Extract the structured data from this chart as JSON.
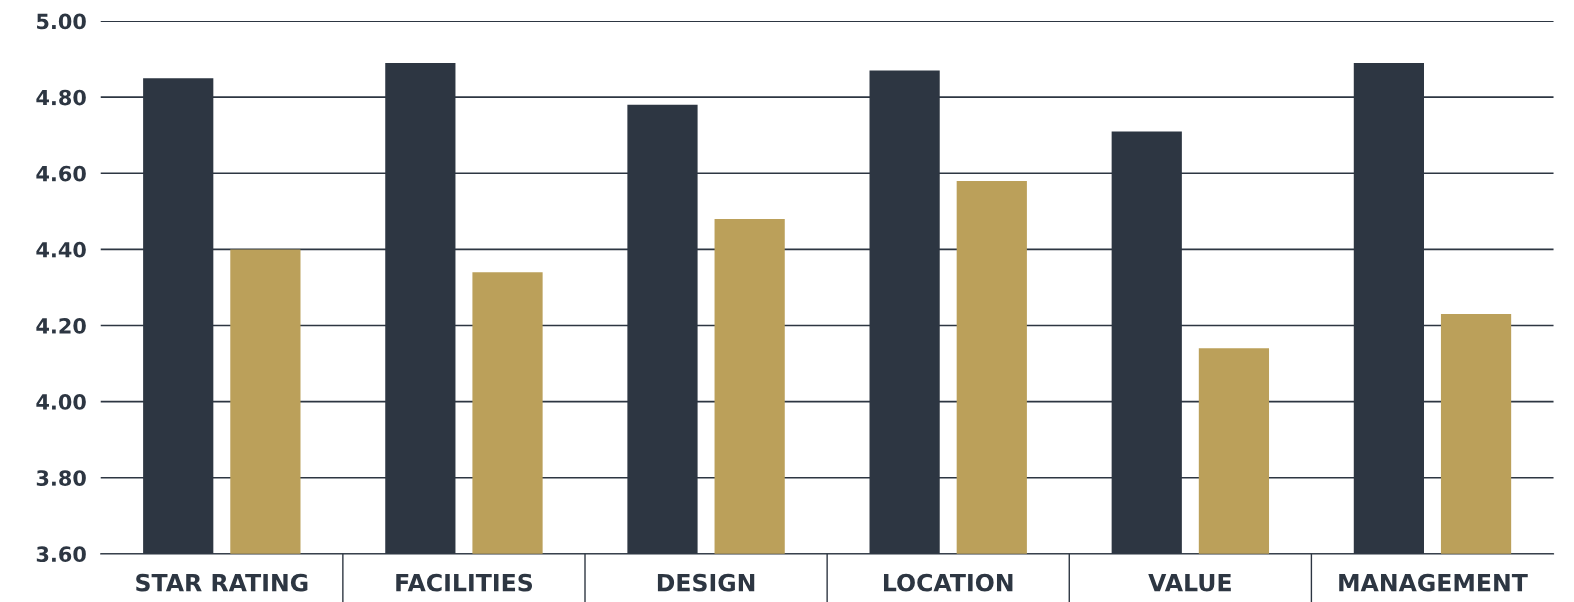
{
  "chart_data": {
    "type": "bar",
    "categories": [
      "STAR RATING",
      "FACILITIES",
      "DESIGN",
      "LOCATION",
      "VALUE",
      "MANAGEMENT"
    ],
    "series": [
      {
        "color": "#2d3642",
        "values": [
          4.85,
          4.89,
          4.78,
          4.87,
          4.71,
          4.89
        ]
      },
      {
        "color": "#bba05a",
        "values": [
          4.4,
          4.34,
          4.48,
          4.58,
          4.14,
          4.23
        ]
      }
    ],
    "ylim": [
      3.6,
      5.0
    ],
    "yticks": [
      {
        "value": 3.6,
        "label": "3.60"
      },
      {
        "value": 3.8,
        "label": "3.80"
      },
      {
        "value": 4.0,
        "label": "4.00"
      },
      {
        "value": 4.2,
        "label": "4.20"
      },
      {
        "value": 4.4,
        "label": "4.40"
      },
      {
        "value": 4.6,
        "label": "4.60"
      },
      {
        "value": 4.8,
        "label": "4.80"
      },
      {
        "value": 5.0,
        "label": "5.00"
      }
    ],
    "grid": "y"
  }
}
